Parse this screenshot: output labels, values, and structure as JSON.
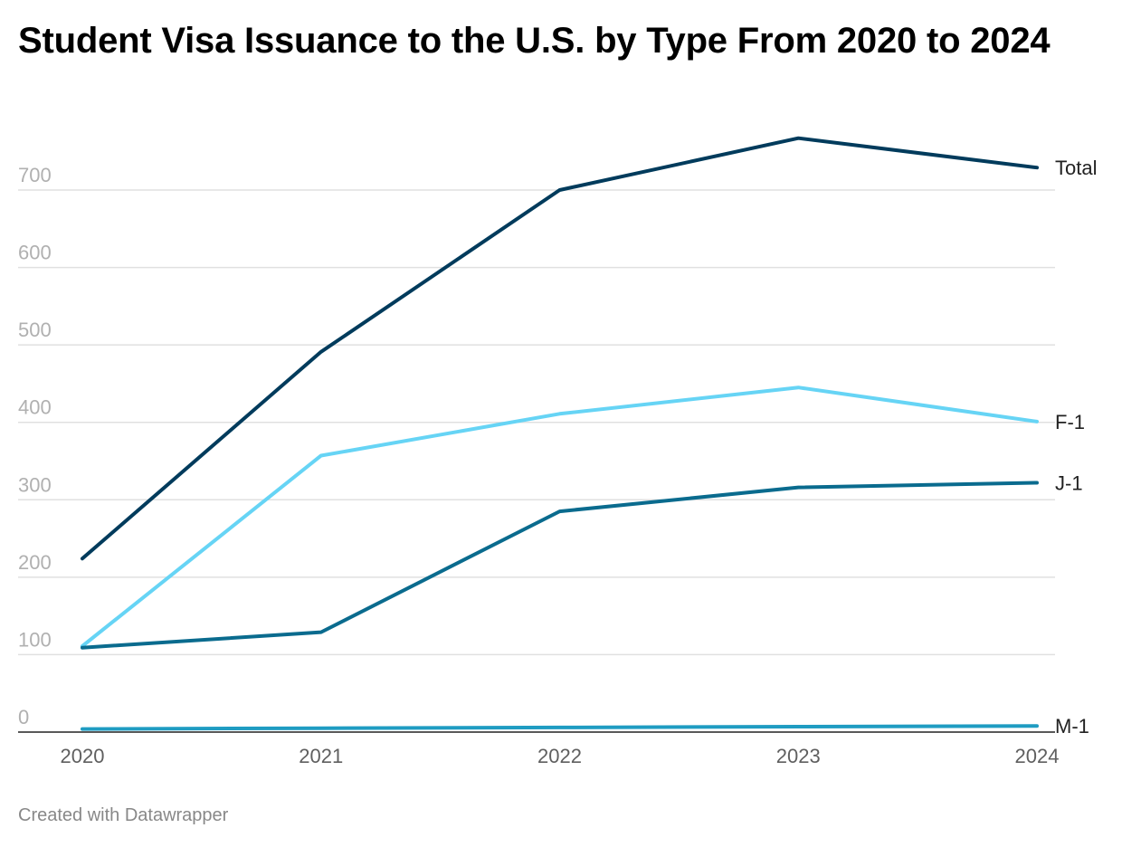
{
  "chart_data": {
    "type": "line",
    "title": "Student Visa Issuance to the U.S. by Type From 2020 to 2024",
    "xlabel": "",
    "ylabel": "",
    "x": [
      "2020",
      "2021",
      "2022",
      "2023",
      "2024"
    ],
    "ylim": [
      0,
      700
    ],
    "yticks": [
      0,
      100,
      200,
      300,
      400,
      500,
      600,
      700
    ],
    "grid": true,
    "legend": "direct-labels-right",
    "series": [
      {
        "name": "Total",
        "color": "#003b5c",
        "values": [
          224,
          491,
          700,
          767,
          729
        ]
      },
      {
        "name": "F-1",
        "color": "#66d4f5",
        "values": [
          111,
          357,
          411,
          445,
          401
        ]
      },
      {
        "name": "J-1",
        "color": "#0a6b8e",
        "values": [
          109,
          129,
          285,
          316,
          322
        ]
      },
      {
        "name": "M-1",
        "color": "#1f9cc2",
        "values": [
          4,
          5,
          6,
          7,
          8
        ]
      }
    ]
  },
  "footer": {
    "credit": "Created with Datawrapper"
  }
}
